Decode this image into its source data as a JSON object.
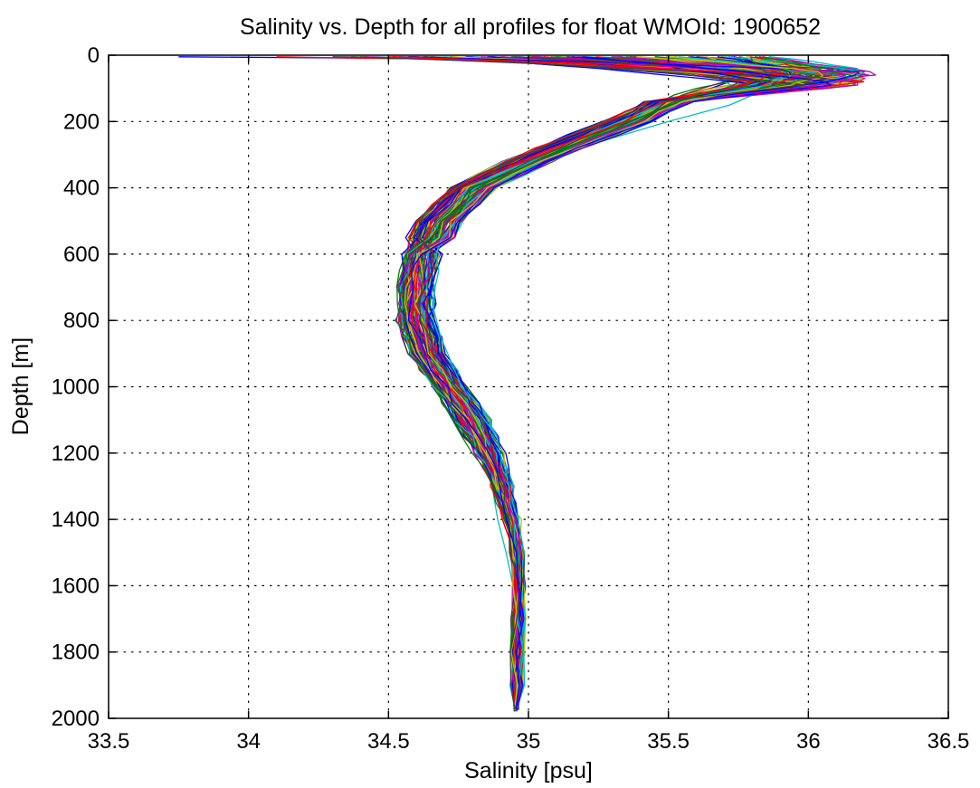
{
  "chart_data": {
    "type": "line",
    "title": "Salinity vs. Depth for all profiles for float WMOId: 1900652",
    "xlabel": "Salinity [psu]",
    "ylabel": "Depth [m]",
    "xlim": [
      33.5,
      36.5
    ],
    "ylim": [
      0,
      2000
    ],
    "y_reversed": true,
    "grid": true,
    "legend": "none",
    "xticks": [
      "33.5",
      "34",
      "34.5",
      "35",
      "35.5",
      "36",
      "36.5"
    ],
    "yticks": [
      "0",
      "200",
      "400",
      "600",
      "800",
      "1000",
      "1200",
      "1400",
      "1600",
      "1800",
      "2000"
    ],
    "series_colors": [
      "#0000ff",
      "#008000",
      "#ff0000",
      "#00bfbf",
      "#bf00bf",
      "#bfbf00",
      "#404040"
    ],
    "mean_profile": {
      "depth": [
        0,
        20,
        40,
        60,
        80,
        120,
        200,
        300,
        400,
        500,
        600,
        700,
        800,
        900,
        1000,
        1100,
        1200,
        1300,
        1400,
        1500,
        1600,
        1700,
        1800,
        1900,
        1980
      ],
      "salinity": [
        35.3,
        35.6,
        35.9,
        36.0,
        35.8,
        35.55,
        35.35,
        35.05,
        34.8,
        34.68,
        34.62,
        34.6,
        34.6,
        34.64,
        34.72,
        34.8,
        34.86,
        34.91,
        34.94,
        34.96,
        34.965,
        34.965,
        34.962,
        34.96,
        34.96
      ]
    },
    "series": [
      {
        "depth": [
          5,
          10,
          15,
          20,
          30,
          40,
          50,
          60,
          70,
          80,
          100,
          120,
          150,
          200,
          250,
          300,
          350,
          400,
          450,
          500,
          550,
          600,
          650,
          700,
          750,
          800,
          850,
          900,
          950,
          1000,
          1100,
          1200,
          1300,
          1400,
          1500,
          1600,
          1700,
          1800,
          1900,
          1975
        ],
        "salinity": [
          33.75,
          34.6,
          35.4,
          35.7,
          35.8,
          35.9,
          35.95,
          35.9,
          35.8,
          35.72,
          35.65,
          35.58,
          35.5,
          35.36,
          35.25,
          35.08,
          34.95,
          34.84,
          34.77,
          34.71,
          34.66,
          34.62,
          34.6,
          34.59,
          34.59,
          34.6,
          34.62,
          34.64,
          34.67,
          34.72,
          34.79,
          34.86,
          34.91,
          34.94,
          34.955,
          34.96,
          34.962,
          34.96,
          34.958,
          34.958
        ]
      },
      {
        "depth": [
          5,
          10,
          15,
          20,
          30,
          40,
          50,
          60,
          70,
          80,
          100,
          120,
          150,
          200,
          250,
          300,
          350,
          400,
          450,
          500,
          550,
          600,
          650,
          700,
          750,
          800,
          850,
          900,
          950,
          1000,
          1100,
          1200,
          1300,
          1400,
          1500,
          1600,
          1700,
          1800,
          1900,
          1975
        ],
        "salinity": [
          35.0,
          35.3,
          35.6,
          35.85,
          36.05,
          36.1,
          36.05,
          35.95,
          35.82,
          35.72,
          35.6,
          35.52,
          35.45,
          35.33,
          35.2,
          35.05,
          34.9,
          34.8,
          34.72,
          34.66,
          34.62,
          34.59,
          34.57,
          34.56,
          34.56,
          34.57,
          34.59,
          34.62,
          34.66,
          34.71,
          34.8,
          34.87,
          34.92,
          34.945,
          34.96,
          34.965,
          34.968,
          34.965,
          34.963,
          34.962
        ]
      },
      {
        "depth": [
          5,
          10,
          15,
          20,
          30,
          40,
          50,
          60,
          70,
          80,
          100,
          120,
          150,
          200,
          250,
          300,
          350,
          400,
          450,
          500,
          550,
          600,
          650,
          700,
          750,
          800,
          850,
          900,
          950,
          1000,
          1100,
          1200,
          1300,
          1400,
          1500,
          1600,
          1700,
          1800,
          1900,
          1975
        ],
        "salinity": [
          34.1,
          34.5,
          35.2,
          35.6,
          35.95,
          36.15,
          36.2,
          36.1,
          35.95,
          35.8,
          35.65,
          35.55,
          35.48,
          35.36,
          35.22,
          35.04,
          34.88,
          34.76,
          34.69,
          34.64,
          34.6,
          34.58,
          34.57,
          34.57,
          34.58,
          34.6,
          34.62,
          34.65,
          34.69,
          34.74,
          34.82,
          34.88,
          34.92,
          34.95,
          34.962,
          34.966,
          34.968,
          34.966,
          34.965,
          34.965
        ]
      },
      {
        "depth": [
          5,
          10,
          15,
          20,
          30,
          40,
          50,
          60,
          70,
          80,
          100,
          120,
          150,
          200,
          250,
          300,
          350,
          400,
          450,
          500,
          550,
          600,
          650,
          700,
          750,
          800,
          850,
          900,
          950,
          1000,
          1100,
          1200,
          1300,
          1400,
          1500,
          1600,
          1700,
          1800,
          1900,
          1975
        ],
        "salinity": [
          35.2,
          35.5,
          35.7,
          35.82,
          35.9,
          35.85,
          35.75,
          35.7,
          35.68,
          35.7,
          35.75,
          35.8,
          35.72,
          35.5,
          35.3,
          35.1,
          34.95,
          34.86,
          34.8,
          34.75,
          34.7,
          34.67,
          34.65,
          34.64,
          34.64,
          34.65,
          34.66,
          34.68,
          34.71,
          34.75,
          34.8,
          34.84,
          34.87,
          34.89,
          34.92,
          34.945,
          34.955,
          34.955,
          34.952,
          34.952
        ]
      },
      {
        "depth": [
          5,
          10,
          15,
          20,
          30,
          40,
          50,
          60,
          70,
          80,
          100,
          120,
          150,
          200,
          250,
          300,
          350,
          400,
          450,
          500,
          550,
          600,
          650,
          700,
          750,
          800,
          850,
          900,
          950,
          1000,
          1100,
          1200,
          1300,
          1400,
          1500,
          1600,
          1700,
          1800,
          1900,
          1975
        ],
        "salinity": [
          35.6,
          35.7,
          35.85,
          35.95,
          36.05,
          36.15,
          36.22,
          36.24,
          36.1,
          35.9,
          35.7,
          35.58,
          35.5,
          35.38,
          35.26,
          35.1,
          34.96,
          34.85,
          34.77,
          34.7,
          34.64,
          34.6,
          34.57,
          34.55,
          34.55,
          34.56,
          34.58,
          34.61,
          34.65,
          34.7,
          34.78,
          34.85,
          34.9,
          34.935,
          34.955,
          34.962,
          34.965,
          34.963,
          34.962,
          34.96
        ]
      },
      {
        "depth": [
          5,
          10,
          15,
          20,
          30,
          40,
          50,
          60,
          70,
          80,
          100,
          120,
          150,
          200,
          250,
          300,
          350,
          400,
          450,
          500,
          550,
          600,
          650,
          700,
          750,
          800,
          850,
          900,
          950,
          1000,
          1100,
          1200,
          1300,
          1400,
          1500,
          1600,
          1700,
          1800,
          1900,
          1975
        ],
        "salinity": [
          35.5,
          35.65,
          35.8,
          35.9,
          36.0,
          36.1,
          36.18,
          36.1,
          35.95,
          35.8,
          35.66,
          35.56,
          35.48,
          35.35,
          35.22,
          35.06,
          34.92,
          34.81,
          34.73,
          34.67,
          34.62,
          34.58,
          34.55,
          34.54,
          34.54,
          34.55,
          34.57,
          34.6,
          34.64,
          34.69,
          34.77,
          34.84,
          34.89,
          34.93,
          34.95,
          34.958,
          34.962,
          34.96,
          34.958,
          34.958
        ]
      },
      {
        "depth": [
          5,
          10,
          15,
          20,
          30,
          40,
          50,
          60,
          70,
          80,
          100,
          120,
          150,
          200,
          250,
          300,
          350,
          400,
          450,
          500,
          550,
          600,
          650,
          700,
          750,
          800,
          850,
          900,
          950,
          1000,
          1100,
          1200,
          1300,
          1400,
          1500,
          1600,
          1700,
          1800,
          1900,
          1975
        ],
        "salinity": [
          34.3,
          34.9,
          35.4,
          35.7,
          35.85,
          35.9,
          35.88,
          35.82,
          35.75,
          35.7,
          35.62,
          35.55,
          35.47,
          35.34,
          35.2,
          35.02,
          34.87,
          34.77,
          34.71,
          34.66,
          34.62,
          34.6,
          34.59,
          34.6,
          34.62,
          34.64,
          34.66,
          34.68,
          34.7,
          34.73,
          34.79,
          34.85,
          34.9,
          34.93,
          34.948,
          34.955,
          34.958,
          34.958,
          34.956,
          34.956
        ]
      }
    ]
  }
}
